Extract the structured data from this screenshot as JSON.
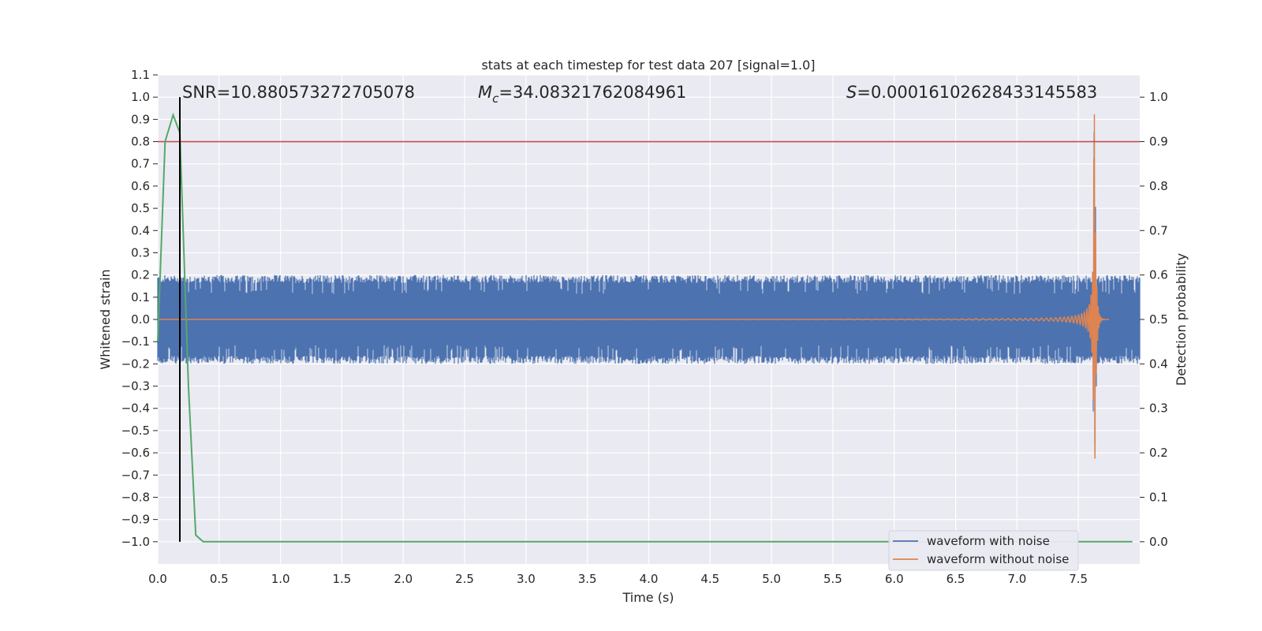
{
  "chart_data": {
    "type": "line",
    "title": "stats at each timestep for test data 207 [signal=1.0]",
    "xlabel": "Time (s)",
    "ylabel_left": "Whitened strain",
    "ylabel_right": "Detection probability",
    "xlim": [
      0.0,
      8.0
    ],
    "ylim_left": [
      -1.1,
      1.1
    ],
    "ylim_right": [
      -0.05,
      1.05
    ],
    "x_ticks": [
      "0.0",
      "0.5",
      "1.0",
      "1.5",
      "2.0",
      "2.5",
      "3.0",
      "3.5",
      "4.0",
      "4.5",
      "5.0",
      "5.5",
      "6.0",
      "6.5",
      "7.0",
      "7.5"
    ],
    "y_ticks_left": [
      "−1.0",
      "−0.9",
      "−0.8",
      "−0.7",
      "−0.6",
      "−0.5",
      "−0.4",
      "−0.3",
      "−0.2",
      "−0.1",
      "0.0",
      "0.1",
      "0.2",
      "0.3",
      "0.4",
      "0.5",
      "0.6",
      "0.7",
      "0.8",
      "0.9",
      "1.0",
      "1.1"
    ],
    "y_ticks_right": [
      "0.0",
      "0.1",
      "0.2",
      "0.3",
      "0.4",
      "0.5",
      "0.6",
      "0.7",
      "0.8",
      "0.9",
      "1.0"
    ],
    "annotations": {
      "snr": "SNR=10.880573272705078",
      "mc_symbol": "M",
      "mc_sub": "c",
      "mc_value": "=34.08321762084961",
      "s_symbol": "S",
      "s_value": "=0.00016102628433145583"
    },
    "threshold_probability": 0.9,
    "marker_time": 0.18,
    "series": [
      {
        "name": "waveform with noise",
        "color": "#4c72b0",
        "noise_amplitude_envelope": 0.2,
        "merger_time": 7.63,
        "peak_strain": 1.0
      },
      {
        "name": "waveform without noise",
        "color": "#dd8452",
        "merger_time": 7.63,
        "peak_strain": 1.0
      },
      {
        "name": "",
        "color": "#55a868",
        "axis": "right",
        "x": [
          0.0,
          0.06,
          0.125,
          0.18,
          0.25,
          0.31,
          0.37,
          7.94
        ],
        "y": [
          0.45,
          0.9,
          0.96,
          0.92,
          0.35,
          0.015,
          0.0,
          0.0
        ]
      }
    ],
    "colors": {
      "threshold": "#c44e52",
      "marker": "#000000",
      "plot_bg": "#eaeaf2",
      "grid": "#ffffff"
    },
    "legend": {
      "location": "lower right",
      "entries": [
        "waveform with noise",
        "waveform without noise"
      ]
    }
  }
}
